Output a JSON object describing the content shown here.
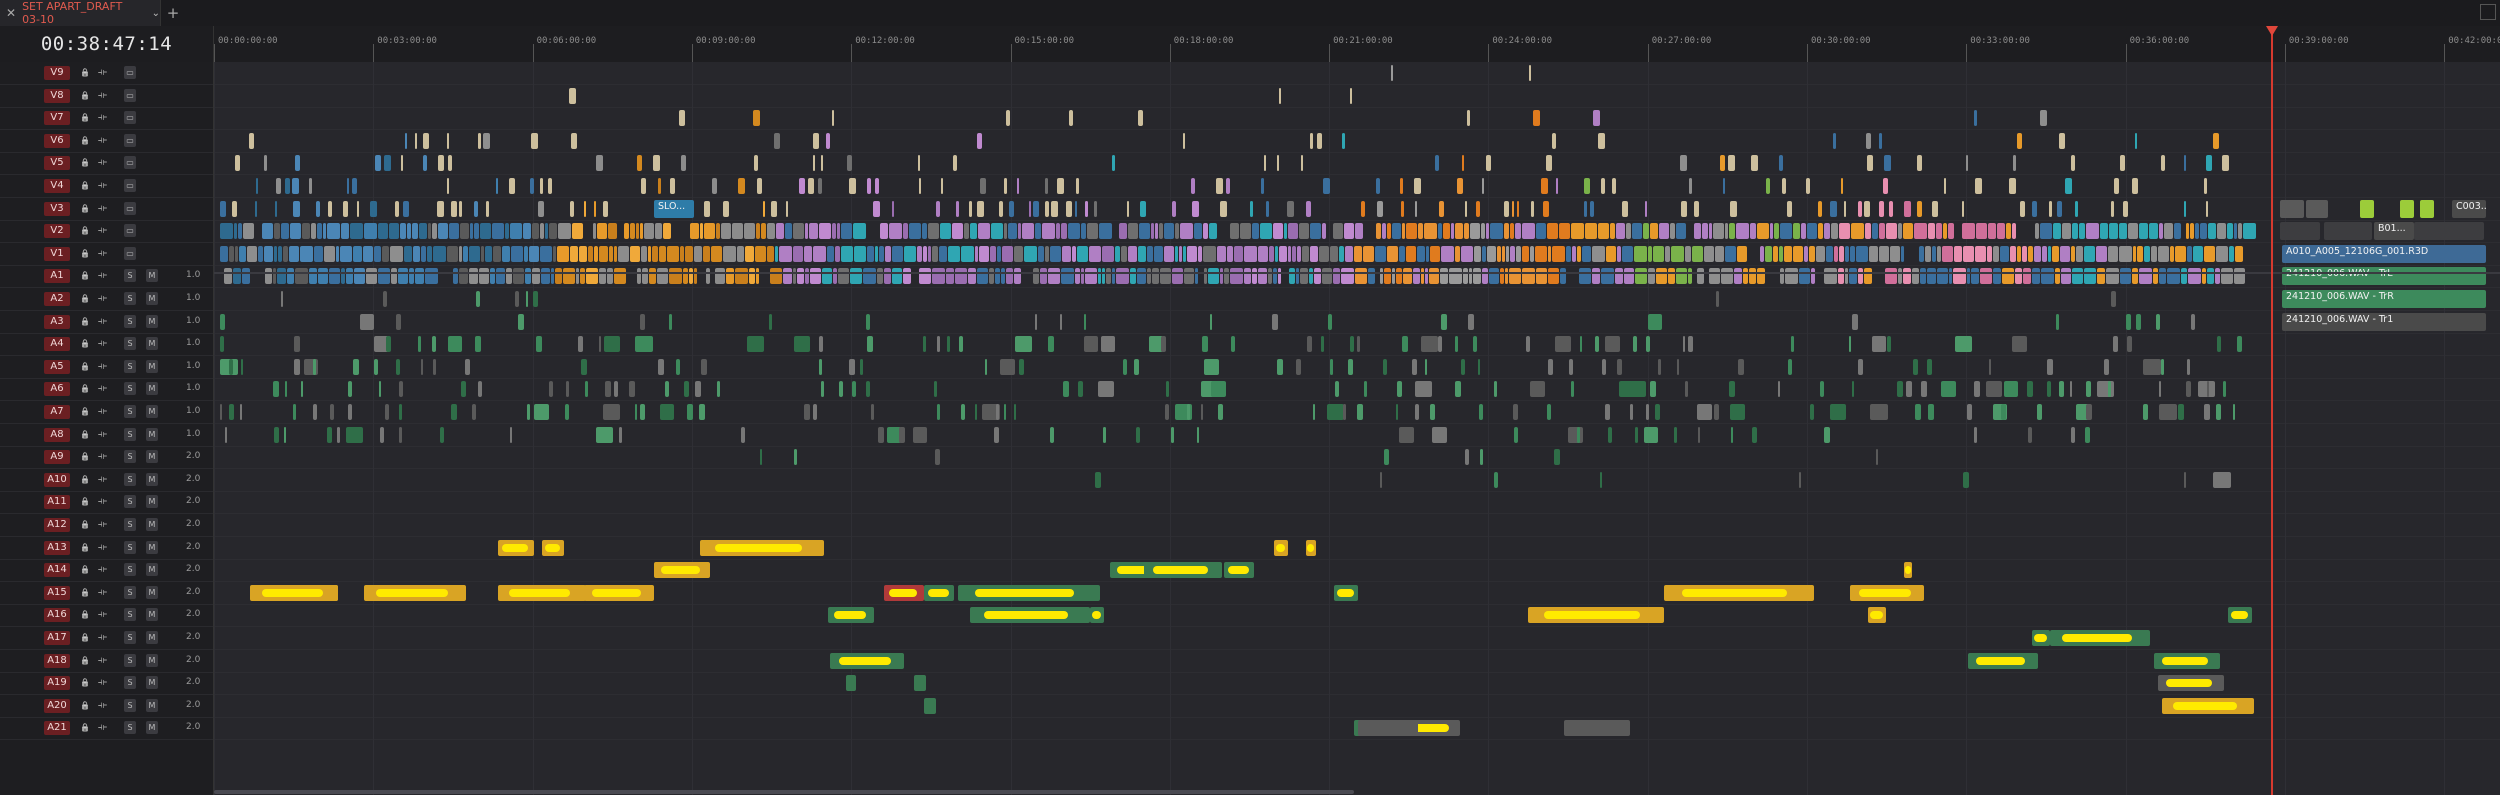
{
  "tab": {
    "title": "SET APART_DRAFT 03-10",
    "close_icon": "close-icon",
    "menu_icon": "chevron-down-icon",
    "add_label": "+"
  },
  "timecode": "00:38:47:14",
  "ruler": [
    "00:00:00:00",
    "00:03:00:00",
    "00:06:00:00",
    "00:09:00:00",
    "00:12:00:00",
    "00:15:00:00",
    "00:18:00:00",
    "00:21:00:00",
    "00:24:00:00",
    "00:27:00:00",
    "00:30:00:00",
    "00:33:00:00",
    "00:36:00:00",
    "00:39:00:00",
    "00:42:00:00"
  ],
  "video_tracks": [
    "V9",
    "V8",
    "V7",
    "V6",
    "V5",
    "V4",
    "V3",
    "V2",
    "V1"
  ],
  "audio_tracks": [
    {
      "name": "A1",
      "vol": "1.0"
    },
    {
      "name": "A2",
      "vol": "1.0"
    },
    {
      "name": "A3",
      "vol": "1.0"
    },
    {
      "name": "A4",
      "vol": "1.0"
    },
    {
      "name": "A5",
      "vol": "1.0"
    },
    {
      "name": "A6",
      "vol": "1.0"
    },
    {
      "name": "A7",
      "vol": "1.0"
    },
    {
      "name": "A8",
      "vol": "1.0"
    },
    {
      "name": "A9",
      "vol": "2.0"
    },
    {
      "name": "A10",
      "vol": "2.0"
    },
    {
      "name": "A11",
      "vol": "2.0"
    },
    {
      "name": "A12",
      "vol": "2.0"
    },
    {
      "name": "A13",
      "vol": "2.0"
    },
    {
      "name": "A14",
      "vol": "2.0"
    },
    {
      "name": "A15",
      "vol": "2.0"
    },
    {
      "name": "A16",
      "vol": "2.0"
    },
    {
      "name": "A17",
      "vol": "2.0"
    },
    {
      "name": "A18",
      "vol": "2.0"
    },
    {
      "name": "A19",
      "vol": "2.0"
    },
    {
      "name": "A20",
      "vol": "2.0"
    },
    {
      "name": "A21",
      "vol": "2.0"
    }
  ],
  "track_button_labels": {
    "solo": "S",
    "mute": "M"
  },
  "clip_labels": {
    "slo": "SLO...",
    "c003": "C003...",
    "b01": "B01...",
    "v1_clip": "A010_A005_12106G_001.R3D",
    "a1_clip": "241210_006.WAV - TrL",
    "a2_clip": "241210_006.WAV - TrR",
    "a3_clip": "241210_006.WAV - Tr1"
  },
  "colors": {
    "playhead": "#d63a2f",
    "tab_active_text": "#e05a4e",
    "track_name_bg": "#6b1f22",
    "highlight": "#ffea00"
  }
}
